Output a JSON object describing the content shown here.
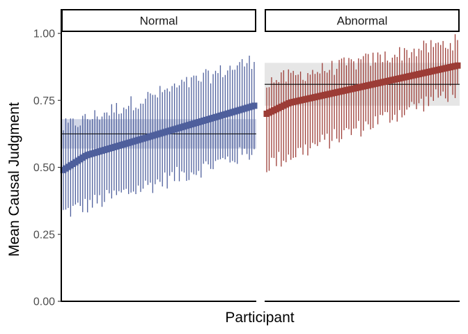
{
  "colors": {
    "normal": "#4e5f9c",
    "abnormal": "#9c3c36",
    "band_normal": "#c9cfe3",
    "band_abnormal": "#e2e2e2",
    "mean_line": "#000000"
  },
  "chart_data": {
    "type": "scatter",
    "subtype": "sorted per-participant means with error bars, faceted by condition",
    "xlabel": "Participant",
    "ylabel": "Mean Causal Judgment",
    "ylim": [
      0,
      1
    ],
    "yticks": [
      "0.00",
      "0.25",
      "0.50",
      "0.75",
      "1.00"
    ],
    "ytick_values": [
      0,
      0.25,
      0.5,
      0.75,
      1.0
    ],
    "grid": false,
    "legend": "none",
    "facets": [
      {
        "label": "Normal",
        "color": "normal",
        "band_color": "band_normal",
        "n_participants": 80,
        "mean_low": 0.49,
        "mean_high": 0.73,
        "err_low_start": 0.33,
        "err_low_end": 0.56,
        "err_high_start": 0.65,
        "err_high_end": 0.9,
        "overall_mean": 0.625,
        "band": [
          0.57,
          0.68
        ]
      },
      {
        "label": "Abnormal",
        "color": "abnormal",
        "band_color": "band_abnormal",
        "n_participants": 80,
        "mean_low": 0.7,
        "mean_high": 0.88,
        "err_low_start": 0.51,
        "err_low_end": 0.79,
        "err_high_start": 0.82,
        "err_high_end": 0.97,
        "overall_mean": 0.81,
        "band": [
          0.73,
          0.89
        ]
      }
    ]
  }
}
